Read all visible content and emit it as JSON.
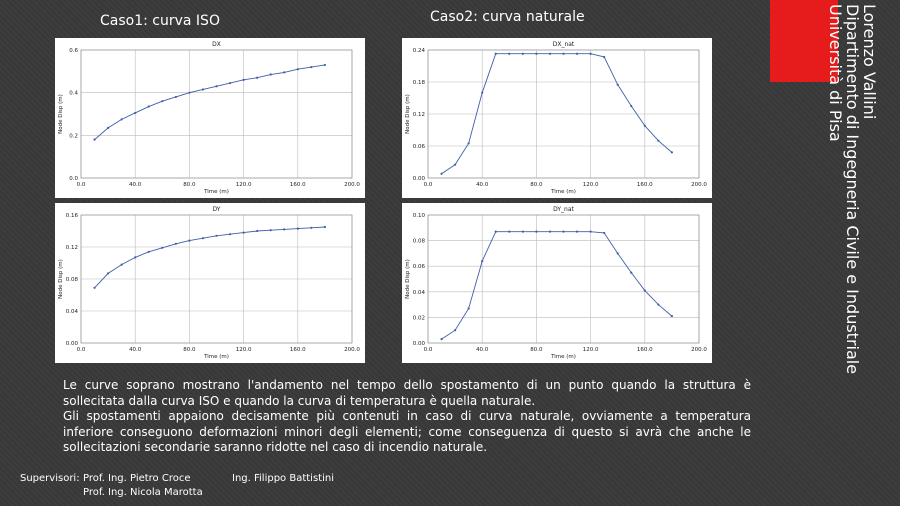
{
  "headings": {
    "left": "Caso1: curva ISO",
    "right": "Caso2: curva naturale"
  },
  "author": {
    "name": "Lorenzo Vallini",
    "department": "Dipartimento di Ingegneria Civile e Industriale",
    "university": "Università di Pisa"
  },
  "body": [
    "Le curve soprano mostrano l'andamento nel tempo dello spostamento di un punto quando la struttura è sollecitata dalla curva ISO e quando la curva di temperatura è quella naturale.",
    "Gli spostamenti appaiono decisamente più contenuti in caso di curva naturale, ovviamente a temperatura inferiore conseguono deformazioni minori degli elementi; come conseguenza di questo si avrà che anche le sollecitazioni secondarie saranno ridotte nel caso di incendio naturale."
  ],
  "footer": {
    "label": "Supervisori:",
    "supervisors": [
      "Prof. Ing. Pietro Croce",
      "Prof. Ing. Nicola Marotta"
    ],
    "co_supervisor": "Ing. Filippo Battistini"
  },
  "chart_data": [
    {
      "type": "line",
      "title": "DX",
      "x_label": "Time (m)",
      "y_label": "Node Disp (m)",
      "color": "#3f5fa8",
      "grid": true,
      "x": [
        10,
        20,
        30,
        40,
        50,
        60,
        70,
        80,
        90,
        100,
        110,
        120,
        130,
        140,
        150,
        160,
        170,
        180
      ],
      "values": [
        0.18,
        0.235,
        0.275,
        0.305,
        0.335,
        0.36,
        0.38,
        0.4,
        0.415,
        0.43,
        0.445,
        0.46,
        0.47,
        0.485,
        0.495,
        0.51,
        0.52,
        0.53
      ],
      "xlim": [
        0,
        200
      ],
      "xticks": [
        {
          "value": 0,
          "label": "0.0"
        },
        {
          "value": 40,
          "label": "40.0"
        },
        {
          "value": 80,
          "label": "80.0"
        },
        {
          "value": 120,
          "label": "120.0"
        },
        {
          "value": 160,
          "label": "160.0"
        },
        {
          "value": 200,
          "label": "200.0"
        }
      ],
      "ylim": [
        0,
        0.6
      ],
      "yticks": [
        {
          "value": 0,
          "label": "0.0"
        },
        0.2,
        0.4,
        0.6
      ]
    },
    {
      "type": "line",
      "title": "DY",
      "x_label": "Time (m)",
      "y_label": "Node Disp (m)",
      "color": "#3f5fa8",
      "grid": true,
      "x": [
        10,
        20,
        30,
        40,
        50,
        60,
        70,
        80,
        90,
        100,
        110,
        120,
        130,
        140,
        150,
        160,
        170,
        180
      ],
      "values": [
        0.069,
        0.087,
        0.098,
        0.107,
        0.114,
        0.119,
        0.124,
        0.128,
        0.131,
        0.134,
        0.136,
        0.138,
        0.14,
        0.141,
        0.142,
        0.143,
        0.144,
        0.145
      ],
      "xlim": [
        0,
        200
      ],
      "xticks": [
        {
          "value": 0,
          "label": "0.0"
        },
        {
          "value": 40,
          "label": "40.0"
        },
        {
          "value": 80,
          "label": "80.0"
        },
        {
          "value": 120,
          "label": "120.0"
        },
        {
          "value": 160,
          "label": "160.0"
        },
        {
          "value": 200,
          "label": "200.0"
        }
      ],
      "ylim": [
        0,
        0.16
      ],
      "yticks": [
        {
          "value": 0,
          "label": "0.00"
        },
        0.04,
        0.08,
        0.12,
        0.16
      ]
    },
    {
      "type": "line",
      "title": "DX_nat",
      "x_label": "Time (m)",
      "y_label": "Node Disp (m)",
      "color": "#3f5fa8",
      "grid": true,
      "x": [
        10,
        20,
        30,
        40,
        50,
        60,
        70,
        80,
        90,
        100,
        110,
        120,
        130,
        140,
        150,
        160,
        170,
        180
      ],
      "values": [
        0.008,
        0.025,
        0.065,
        0.16,
        0.233,
        0.233,
        0.233,
        0.233,
        0.233,
        0.233,
        0.233,
        0.233,
        0.227,
        0.175,
        0.135,
        0.098,
        0.07,
        0.048
      ],
      "xlim": [
        0,
        200
      ],
      "xticks": [
        {
          "value": 0,
          "label": "0.0"
        },
        {
          "value": 40,
          "label": "40.0"
        },
        {
          "value": 80,
          "label": "80.0"
        },
        {
          "value": 120,
          "label": "120.0"
        },
        {
          "value": 160,
          "label": "160.0"
        },
        {
          "value": 200,
          "label": "200.0"
        }
      ],
      "ylim": [
        0,
        0.24
      ],
      "yticks": [
        {
          "value": 0,
          "label": "0.00"
        },
        0.06,
        0.12,
        0.18,
        0.24
      ]
    },
    {
      "type": "line",
      "title": "DY_nat",
      "x_label": "Time (m)",
      "y_label": "Node Disp (m)",
      "color": "#3f5fa8",
      "grid": true,
      "x": [
        10,
        20,
        30,
        40,
        50,
        60,
        70,
        80,
        90,
        100,
        110,
        120,
        130,
        140,
        150,
        160,
        170,
        180
      ],
      "values": [
        0.003,
        0.01,
        0.027,
        0.064,
        0.087,
        0.087,
        0.087,
        0.087,
        0.087,
        0.087,
        0.087,
        0.087,
        0.086,
        0.07,
        0.055,
        0.041,
        0.03,
        0.021
      ],
      "xlim": [
        0,
        200
      ],
      "xticks": [
        {
          "value": 0,
          "label": "0.0"
        },
        {
          "value": 40,
          "label": "40.0"
        },
        {
          "value": 80,
          "label": "80.0"
        },
        {
          "value": 120,
          "label": "120.0"
        },
        {
          "value": 160,
          "label": "160.0"
        },
        {
          "value": 200,
          "label": "200.0"
        }
      ],
      "ylim": [
        0,
        0.1
      ],
      "yticks": [
        {
          "value": 0,
          "label": "0.00"
        },
        0.02,
        0.04,
        0.06,
        0.08,
        {
          "value": 0.1,
          "label": "0.10"
        }
      ]
    }
  ]
}
